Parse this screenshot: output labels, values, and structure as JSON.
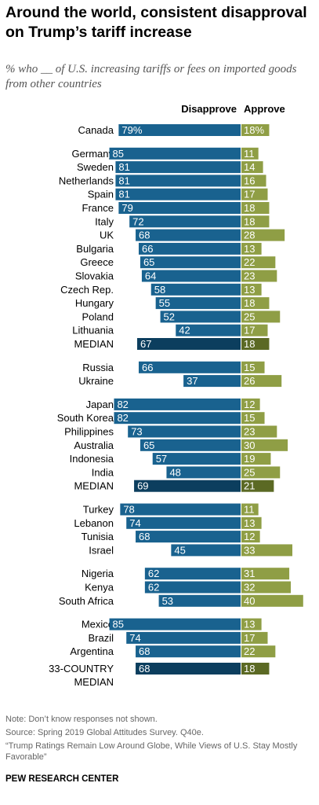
{
  "title": "Around the world, consistent disapproval on Trump’s tariff increase",
  "subtitle": "% who __ of U.S. increasing tariffs or fees on imported goods from other countries",
  "note": "Note: Don’t know responses not shown.",
  "source": "Source: Spring 2019 Global Attitudes Survey. Q40e.",
  "report": "“Trump Ratings Remain Low Around Globe, While Views of U.S. Stay Mostly Favorable”",
  "brand": "PEW RESEARCH CENTER",
  "colors": {
    "disapprove": "#19628f",
    "approve": "#8f9e45",
    "median_disapprove": "#0c3e5e",
    "median_approve": "#5b6924"
  },
  "chart_data": {
    "type": "bar",
    "orientation": "diverging-horizontal",
    "series": [
      {
        "name": "Disapprove"
      },
      {
        "name": "Approve"
      }
    ],
    "groups": [
      {
        "rows": [
          {
            "label": "Canada",
            "disapprove": 79,
            "approve": 18,
            "disapprove_label": "79%",
            "approve_label": "18%"
          }
        ]
      },
      {
        "rows": [
          {
            "label": "Germany",
            "disapprove": 85,
            "approve": 11
          },
          {
            "label": "Sweden",
            "disapprove": 81,
            "approve": 14
          },
          {
            "label": "Netherlands",
            "disapprove": 81,
            "approve": 16
          },
          {
            "label": "Spain",
            "disapprove": 81,
            "approve": 17
          },
          {
            "label": "France",
            "disapprove": 79,
            "approve": 18
          },
          {
            "label": "Italy",
            "disapprove": 72,
            "approve": 18
          },
          {
            "label": "UK",
            "disapprove": 68,
            "approve": 28
          },
          {
            "label": "Bulgaria",
            "disapprove": 66,
            "approve": 13
          },
          {
            "label": "Greece",
            "disapprove": 65,
            "approve": 22
          },
          {
            "label": "Slovakia",
            "disapprove": 64,
            "approve": 23
          },
          {
            "label": "Czech Rep.",
            "disapprove": 58,
            "approve": 13
          },
          {
            "label": "Hungary",
            "disapprove": 55,
            "approve": 18
          },
          {
            "label": "Poland",
            "disapprove": 52,
            "approve": 25
          },
          {
            "label": "Lithuania",
            "disapprove": 42,
            "approve": 17
          },
          {
            "label": "MEDIAN",
            "disapprove": 67,
            "approve": 18,
            "median": true
          }
        ]
      },
      {
        "rows": [
          {
            "label": "Russia",
            "disapprove": 66,
            "approve": 15
          },
          {
            "label": "Ukraine",
            "disapprove": 37,
            "approve": 26
          }
        ]
      },
      {
        "rows": [
          {
            "label": "Japan",
            "disapprove": 82,
            "approve": 12
          },
          {
            "label": "South Korea",
            "disapprove": 82,
            "approve": 15
          },
          {
            "label": "Philippines",
            "disapprove": 73,
            "approve": 23
          },
          {
            "label": "Australia",
            "disapprove": 65,
            "approve": 30
          },
          {
            "label": "Indonesia",
            "disapprove": 57,
            "approve": 19
          },
          {
            "label": "India",
            "disapprove": 48,
            "approve": 25
          },
          {
            "label": "MEDIAN",
            "disapprove": 69,
            "approve": 21,
            "median": true
          }
        ]
      },
      {
        "rows": [
          {
            "label": "Turkey",
            "disapprove": 78,
            "approve": 11
          },
          {
            "label": "Lebanon",
            "disapprove": 74,
            "approve": 13
          },
          {
            "label": "Tunisia",
            "disapprove": 68,
            "approve": 12
          },
          {
            "label": "Israel",
            "disapprove": 45,
            "approve": 33
          }
        ]
      },
      {
        "rows": [
          {
            "label": "Nigeria",
            "disapprove": 62,
            "approve": 31
          },
          {
            "label": "Kenya",
            "disapprove": 62,
            "approve": 32
          },
          {
            "label": "South Africa",
            "disapprove": 53,
            "approve": 40
          }
        ]
      },
      {
        "rows": [
          {
            "label": "Mexico",
            "disapprove": 85,
            "approve": 13
          },
          {
            "label": "Brazil",
            "disapprove": 74,
            "approve": 17
          },
          {
            "label": "Argentina",
            "disapprove": 68,
            "approve": 22
          }
        ]
      },
      {
        "rows": [
          {
            "label": "33-COUNTRY\nMEDIAN",
            "disapprove": 68,
            "approve": 18,
            "median": true
          }
        ]
      }
    ]
  }
}
